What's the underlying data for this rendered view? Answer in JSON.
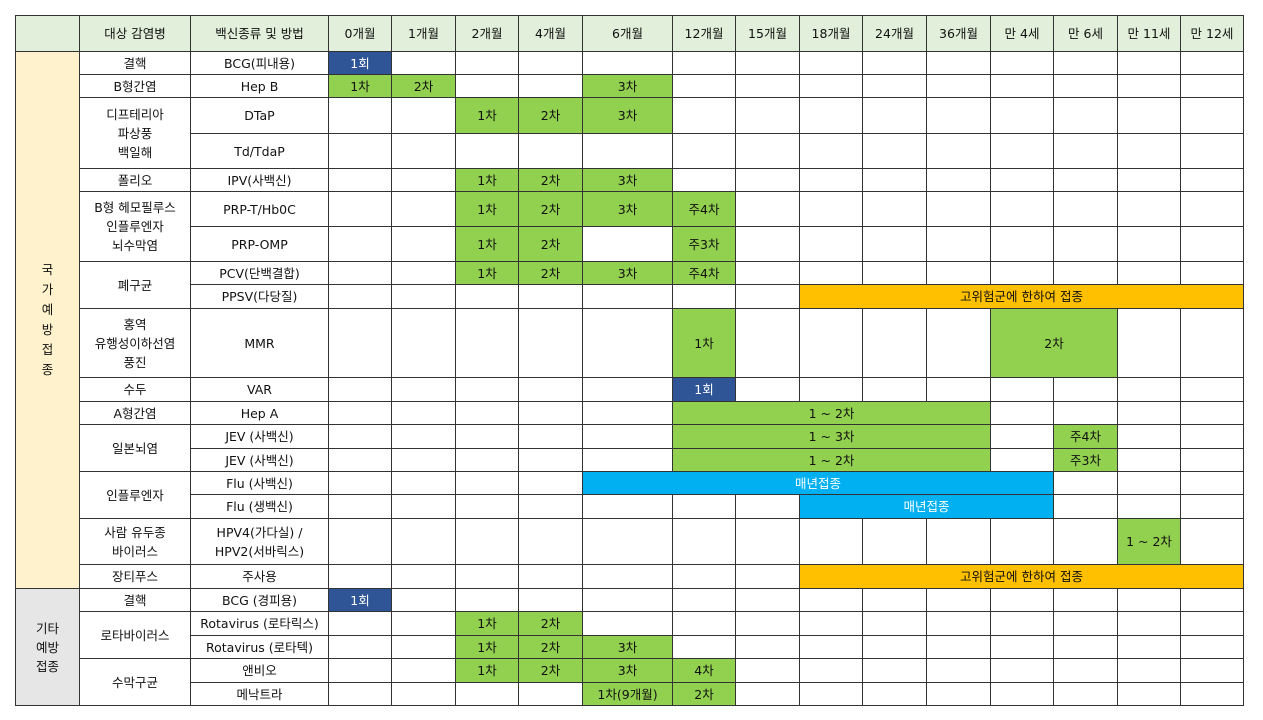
{
  "table": {
    "header": [
      "대상 감염병",
      "백신종류 및 방법",
      "0개월",
      "1개월",
      "2개월",
      "4개월",
      "6개월",
      "12개월",
      "15개월",
      "18개월",
      "24개월",
      "36개월",
      "만 4세",
      "만 6세",
      "만 11세",
      "만 12세"
    ],
    "groups": [
      "국가예방접종",
      "기타\n예방\n접종"
    ],
    "diseases": [
      "결핵",
      "B형간염",
      "디프테리아\n파상풍\n백일해",
      "폴리오",
      "B형 헤모필루스\n인플루엔자\n뇌수막염",
      "폐구균",
      "홍역\n유행성이하선염\n풍진",
      "수두",
      "A형간염",
      "일본뇌염",
      "인플루엔자",
      "사람 유두종\n바이러스",
      "장티푸스",
      "결핵",
      "로타바이러스",
      "수막구균"
    ],
    "rows": [
      {
        "vaccine": "BCG(피내용)",
        "doses": [
          "1회"
        ]
      },
      {
        "vaccine": "Hep B",
        "doses": [
          "1차",
          "2차",
          "3차"
        ]
      },
      {
        "vaccine": "DTaP",
        "doses": [
          "1차",
          "2차",
          "3차"
        ]
      },
      {
        "vaccine": "Td/TdaP",
        "doses": []
      },
      {
        "vaccine": "IPV(사백신)",
        "doses": [
          "1차",
          "2차",
          "3차"
        ]
      },
      {
        "vaccine": "PRP-T/Hb0C",
        "doses": [
          "1차",
          "2차",
          "3차",
          "주4차"
        ]
      },
      {
        "vaccine": "PRP-OMP",
        "doses": [
          "1차",
          "2차",
          "주3차"
        ]
      },
      {
        "vaccine": "PCV(단백결합)",
        "doses": [
          "1차",
          "2차",
          "3차",
          "주4차"
        ]
      },
      {
        "vaccine": "PPSV(다당질)",
        "doses": [
          "고위험군에 한하여 접종"
        ]
      },
      {
        "vaccine": "MMR",
        "doses": [
          "1차",
          "2차"
        ]
      },
      {
        "vaccine": "VAR",
        "doses": [
          "1회"
        ]
      },
      {
        "vaccine": "Hep A",
        "doses": [
          "1 ~ 2차"
        ]
      },
      {
        "vaccine": "JEV (사백신)",
        "doses": [
          "1 ~ 3차",
          "주4차"
        ]
      },
      {
        "vaccine": "JEV (사백신)",
        "doses": [
          "1 ~ 2차",
          "주3차"
        ]
      },
      {
        "vaccine": "Flu (사백신)",
        "doses": [
          "매년접종"
        ]
      },
      {
        "vaccine": "Flu (생백신)",
        "doses": [
          "매년접종"
        ]
      },
      {
        "vaccine": "HPV4(가다실) /\nHPV2(서바릭스)",
        "doses": [
          "1 ~ 2차"
        ]
      },
      {
        "vaccine": "주사용",
        "doses": [
          "고위험군에 한하여 접종"
        ]
      },
      {
        "vaccine": "BCG (경피용)",
        "doses": [
          "1회"
        ]
      },
      {
        "vaccine": "Rotavirus (로타릭스)",
        "doses": [
          "1차",
          "2차"
        ]
      },
      {
        "vaccine": "Rotavirus (로타텍)",
        "doses": [
          "1차",
          "2차",
          "3차"
        ]
      },
      {
        "vaccine": "앤비오",
        "doses": [
          "1차",
          "2차",
          "3차",
          "4차"
        ]
      },
      {
        "vaccine": "메낙트라",
        "doses": [
          "1차(9개월)",
          "2차"
        ]
      }
    ]
  }
}
